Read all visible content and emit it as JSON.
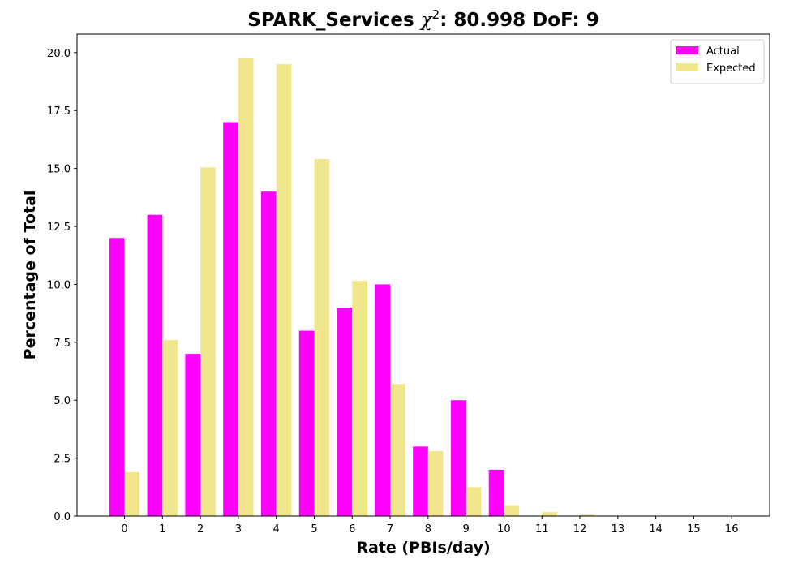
{
  "chart_data": {
    "type": "bar",
    "title": "SPARK_Services χ²: 80.998 DoF: 9",
    "title_parts": {
      "prefix": "SPARK_Services ",
      "chi": "χ",
      "sup": "2",
      "suffix": ": 80.998 DoF: 9"
    },
    "xlabel": "Rate (PBIs/day)",
    "ylabel": "Percentage of Total",
    "categories": [
      "0",
      "1",
      "2",
      "3",
      "4",
      "5",
      "6",
      "7",
      "8",
      "9",
      "10",
      "11",
      "12",
      "13",
      "14",
      "15",
      "16"
    ],
    "series": [
      {
        "name": "Actual",
        "color": "#ff00ff",
        "values": [
          12,
          13,
          7,
          17,
          14,
          8,
          9,
          10,
          3,
          5,
          2,
          0,
          0,
          0,
          0,
          0,
          0
        ]
      },
      {
        "name": "Expected",
        "color": "#f0e68c",
        "values": [
          1.9,
          7.6,
          15.05,
          19.75,
          19.5,
          15.4,
          10.15,
          5.7,
          2.8,
          1.25,
          0.47,
          0.17,
          0.06,
          0.02,
          0.005,
          0.001,
          0.0
        ]
      }
    ],
    "yticks": [
      "0.0",
      "2.5",
      "5.0",
      "7.5",
      "10.0",
      "12.5",
      "15.0",
      "17.5",
      "20.0"
    ],
    "ylim": [
      0,
      20.8
    ],
    "xlim": [
      -1.25,
      17
    ],
    "legend_position": "top-right",
    "grid": false
  }
}
